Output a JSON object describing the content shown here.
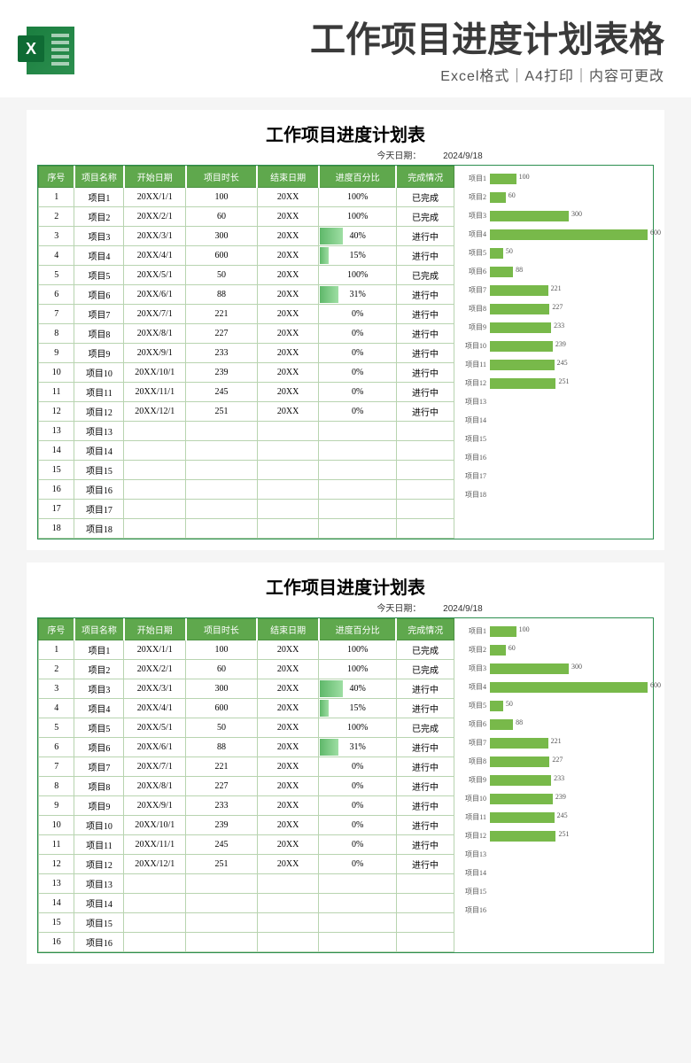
{
  "header": {
    "main_title": "工作项目进度计划表格",
    "sub_title": "Excel格式｜A4打印｜内容可更改"
  },
  "sheet": {
    "title": "工作项目进度计划表",
    "date_label": "今天日期：",
    "date_value": "2024/9/18",
    "columns": [
      "序号",
      "项目名称",
      "开始日期",
      "项目时长",
      "结束日期",
      "进度百分比",
      "完成情况"
    ],
    "rows": [
      {
        "idx": "1",
        "name": "项目1",
        "start": "20XX/1/1",
        "dur": "100",
        "end": "20XX",
        "pct": "100%",
        "pct_n": 100,
        "stat": "已完成"
      },
      {
        "idx": "2",
        "name": "项目2",
        "start": "20XX/2/1",
        "dur": "60",
        "end": "20XX",
        "pct": "100%",
        "pct_n": 100,
        "stat": "已完成"
      },
      {
        "idx": "3",
        "name": "项目3",
        "start": "20XX/3/1",
        "dur": "300",
        "end": "20XX",
        "pct": "40%",
        "pct_n": 40,
        "stat": "进行中"
      },
      {
        "idx": "4",
        "name": "项目4",
        "start": "20XX/4/1",
        "dur": "600",
        "end": "20XX",
        "pct": "15%",
        "pct_n": 15,
        "stat": "进行中"
      },
      {
        "idx": "5",
        "name": "项目5",
        "start": "20XX/5/1",
        "dur": "50",
        "end": "20XX",
        "pct": "100%",
        "pct_n": 100,
        "stat": "已完成"
      },
      {
        "idx": "6",
        "name": "项目6",
        "start": "20XX/6/1",
        "dur": "88",
        "end": "20XX",
        "pct": "31%",
        "pct_n": 31,
        "stat": "进行中"
      },
      {
        "idx": "7",
        "name": "项目7",
        "start": "20XX/7/1",
        "dur": "221",
        "end": "20XX",
        "pct": "0%",
        "pct_n": 0,
        "stat": "进行中"
      },
      {
        "idx": "8",
        "name": "项目8",
        "start": "20XX/8/1",
        "dur": "227",
        "end": "20XX",
        "pct": "0%",
        "pct_n": 0,
        "stat": "进行中"
      },
      {
        "idx": "9",
        "name": "项目9",
        "start": "20XX/9/1",
        "dur": "233",
        "end": "20XX",
        "pct": "0%",
        "pct_n": 0,
        "stat": "进行中"
      },
      {
        "idx": "10",
        "name": "项目10",
        "start": "20XX/10/1",
        "dur": "239",
        "end": "20XX",
        "pct": "0%",
        "pct_n": 0,
        "stat": "进行中"
      },
      {
        "idx": "11",
        "name": "项目11",
        "start": "20XX/11/1",
        "dur": "245",
        "end": "20XX",
        "pct": "0%",
        "pct_n": 0,
        "stat": "进行中"
      },
      {
        "idx": "12",
        "name": "项目12",
        "start": "20XX/12/1",
        "dur": "251",
        "end": "20XX",
        "pct": "0%",
        "pct_n": 0,
        "stat": "进行中"
      },
      {
        "idx": "13",
        "name": "项目13",
        "start": "",
        "dur": "",
        "end": "",
        "pct": "",
        "pct_n": null,
        "stat": ""
      },
      {
        "idx": "14",
        "name": "项目14",
        "start": "",
        "dur": "",
        "end": "",
        "pct": "",
        "pct_n": null,
        "stat": ""
      },
      {
        "idx": "15",
        "name": "项目15",
        "start": "",
        "dur": "",
        "end": "",
        "pct": "",
        "pct_n": null,
        "stat": ""
      },
      {
        "idx": "16",
        "name": "项目16",
        "start": "",
        "dur": "",
        "end": "",
        "pct": "",
        "pct_n": null,
        "stat": ""
      },
      {
        "idx": "17",
        "name": "项目17",
        "start": "",
        "dur": "",
        "end": "",
        "pct": "",
        "pct_n": null,
        "stat": ""
      },
      {
        "idx": "18",
        "name": "项目18",
        "start": "",
        "dur": "",
        "end": "",
        "pct": "",
        "pct_n": null,
        "stat": ""
      }
    ],
    "chart": {
      "type": "bar",
      "max": 600,
      "bar_color": "#78b94a",
      "items": [
        {
          "label": "项目1",
          "value": 100
        },
        {
          "label": "项目2",
          "value": 60
        },
        {
          "label": "项目3",
          "value": 300
        },
        {
          "label": "项目4",
          "value": 600
        },
        {
          "label": "项目5",
          "value": 50
        },
        {
          "label": "项目6",
          "value": 88
        },
        {
          "label": "项目7",
          "value": 221
        },
        {
          "label": "项目8",
          "value": 227
        },
        {
          "label": "项目9",
          "value": 233
        },
        {
          "label": "项目10",
          "value": 239
        },
        {
          "label": "项目11",
          "value": 245
        },
        {
          "label": "项目12",
          "value": 251
        },
        {
          "label": "项目13",
          "value": null
        },
        {
          "label": "项目14",
          "value": null
        },
        {
          "label": "项目15",
          "value": null
        },
        {
          "label": "项目16",
          "value": null
        },
        {
          "label": "项目17",
          "value": null
        },
        {
          "label": "项目18",
          "value": null
        }
      ]
    }
  },
  "second_sheet_visible_rows": 16,
  "colors": {
    "header_green": "#5fa84d",
    "border_green": "#2c8f4f",
    "grid": "#b8d4b0",
    "bar": "#78b94a",
    "pct_fill": "#7fc988"
  }
}
